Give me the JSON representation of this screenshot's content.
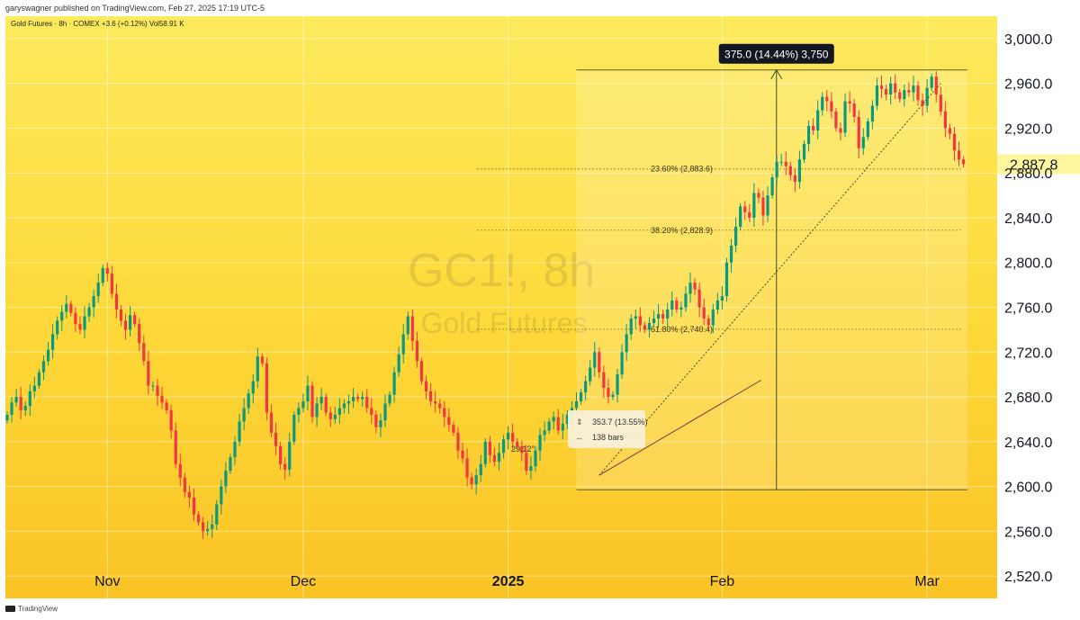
{
  "header": {
    "publisher": "garyswagner published on TradingView.com, Feb 27, 2025 17:19 UTC-5"
  },
  "legend": {
    "text": "Gold Futures · 8h · COMEX  +3.6 (+0.12%)  Vol58.91 K"
  },
  "watermark": {
    "symbol": "GC1!, 8h",
    "name": "Gold Futures"
  },
  "footer": {
    "brand": "TradingView"
  },
  "colors": {
    "up": "#089981",
    "down": "#f23645",
    "background_top": "#fdea5d",
    "background_bottom": "#fbc325"
  },
  "chart_data": {
    "type": "candlestick",
    "symbol": "GC1!",
    "interval": "8h",
    "exchange": "COMEX",
    "ylim": [
      2500,
      3020
    ],
    "y_ticks": [
      "2,520.0",
      "2,560.0",
      "2,600.0",
      "2,640.0",
      "2,680.0",
      "2,720.0",
      "2,760.0",
      "2,800.0",
      "2,840.0",
      "2,880.0",
      "2,920.0",
      "2,960.0",
      "3,000.0"
    ],
    "last_price": "2,887.8",
    "x_labels": [
      {
        "label": "Nov",
        "bar": 22
      },
      {
        "label": "Dec",
        "bar": 65
      },
      {
        "label": "2025",
        "bar": 110,
        "bold": true
      },
      {
        "label": "Feb",
        "bar": 157
      },
      {
        "label": "Mar",
        "bar": 202
      }
    ],
    "bar_count": 211,
    "closes": [
      2664,
      2675,
      2680,
      2668,
      2672,
      2685,
      2690,
      2702,
      2712,
      2722,
      2736,
      2748,
      2756,
      2763,
      2755,
      2745,
      2740,
      2752,
      2760,
      2770,
      2782,
      2795,
      2790,
      2772,
      2758,
      2748,
      2740,
      2753,
      2745,
      2728,
      2712,
      2690,
      2690,
      2681,
      2675,
      2668,
      2650,
      2620,
      2608,
      2595,
      2590,
      2575,
      2568,
      2560,
      2562,
      2566,
      2584,
      2600,
      2614,
      2626,
      2640,
      2658,
      2670,
      2683,
      2694,
      2716,
      2710,
      2666,
      2648,
      2636,
      2620,
      2615,
      2640,
      2664,
      2670,
      2676,
      2690,
      2662,
      2674,
      2680,
      2666,
      2660,
      2664,
      2670,
      2674,
      2676,
      2680,
      2678,
      2680,
      2670,
      2664,
      2653,
      2659,
      2674,
      2682,
      2702,
      2718,
      2736,
      2752,
      2730,
      2712,
      2694,
      2685,
      2676,
      2674,
      2670,
      2662,
      2655,
      2648,
      2632,
      2625,
      2608,
      2602,
      2610,
      2620,
      2640,
      2628,
      2622,
      2630,
      2642,
      2648,
      2640,
      2636,
      2630,
      2614,
      2618,
      2632,
      2646,
      2650,
      2658,
      2662,
      2650,
      2656,
      2664,
      2670,
      2676,
      2684,
      2694,
      2706,
      2720,
      2702,
      2688,
      2680,
      2682,
      2700,
      2720,
      2736,
      2750,
      2752,
      2744,
      2740,
      2746,
      2750,
      2754,
      2750,
      2758,
      2766,
      2758,
      2760,
      2772,
      2782,
      2776,
      2760,
      2750,
      2744,
      2758,
      2766,
      2770,
      2800,
      2815,
      2832,
      2850,
      2845,
      2840,
      2862,
      2858,
      2842,
      2860,
      2876,
      2890,
      2890,
      2886,
      2878,
      2872,
      2892,
      2906,
      2922,
      2918,
      2936,
      2948,
      2944,
      2935,
      2920,
      2916,
      2944,
      2942,
      2930,
      2902,
      2912,
      2926,
      2940,
      2958,
      2955,
      2950,
      2960,
      2952,
      2946,
      2954,
      2952,
      2958,
      2945,
      2940,
      2956,
      2966,
      2950,
      2935,
      2920,
      2915,
      2900,
      2892,
      2887.8
    ],
    "drawings": {
      "measure_box": {
        "start_bar": 125,
        "end_bar": 218,
        "low": 2597,
        "high": 2972,
        "label": "375.0 (14.44%) 3,750"
      },
      "fibonacci": [
        {
          "label": "23.60% (2,883.6)",
          "price": 2883.6
        },
        {
          "label": "38.20% (2,828.9)",
          "price": 2828.9
        },
        {
          "label": "61.80% (2,740.4)",
          "price": 2740.4
        }
      ],
      "trendline": {
        "start_bar": 130,
        "start_price": 2610,
        "end_bar": 205,
        "end_price": 2960
      },
      "angle_label": "29.12°",
      "range_info": {
        "price_change": "353.7 (13.55%)",
        "bars": "138 bars"
      }
    }
  }
}
